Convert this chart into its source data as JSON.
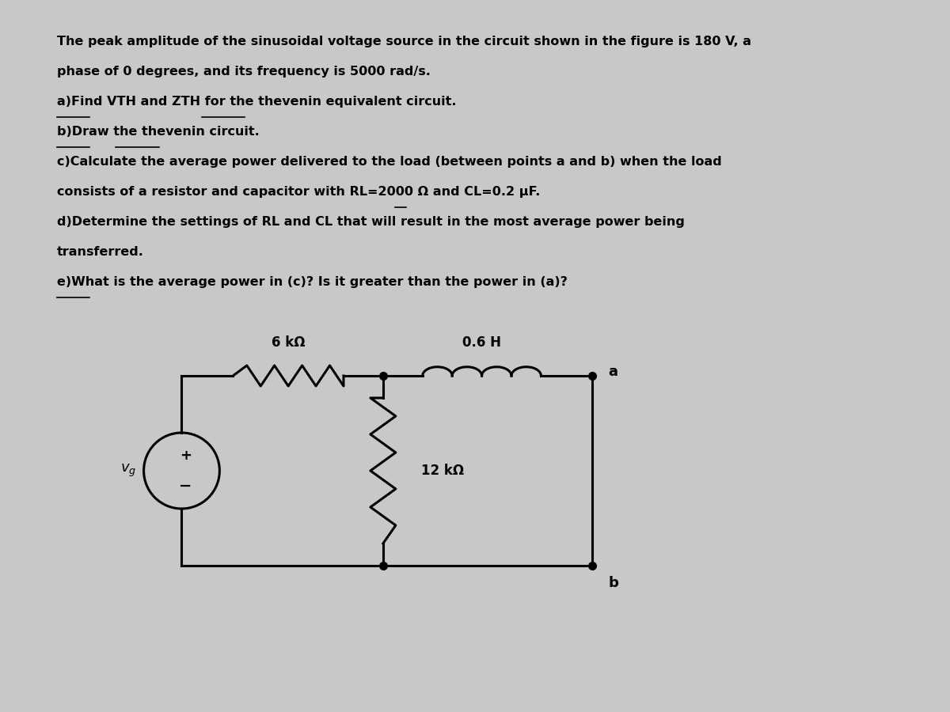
{
  "bg_color": "#c8c8c8",
  "text_color": "#000000",
  "title_lines": [
    "The peak amplitude of the sinusoidal voltage source in the circuit shown in the figure is 180 V, a",
    "phase of 0 degrees, and its frequency is 5000 rad/s.",
    "a)Find VTH and ZTH for the thevenin equivalent circuit.",
    "b)Draw the thevenin circuit.",
    "c)Calculate the average power delivered to the load (between points a and b) when the load",
    "consists of a resistor and capacitor with RL=2000 Ω and CL=0.2 μF.",
    "d)Determine the settings of RL and CL that will result in the most average power being",
    "transferred.",
    "e)What is the average power in (c)? Is it greater than the power in (a)?"
  ],
  "circuit": {
    "R1_label": "6 kΩ",
    "L1_label": "0.6 H",
    "R2_label": "12 kΩ",
    "node_a_label": "a",
    "node_b_label": "b",
    "Vg_label": "v_g"
  }
}
